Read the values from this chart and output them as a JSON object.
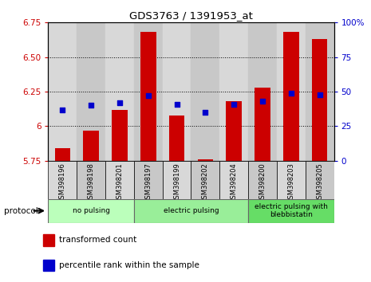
{
  "title": "GDS3763 / 1391953_at",
  "samples": [
    "GSM398196",
    "GSM398198",
    "GSM398201",
    "GSM398197",
    "GSM398199",
    "GSM398202",
    "GSM398204",
    "GSM398200",
    "GSM398203",
    "GSM398205"
  ],
  "red_values": [
    5.84,
    5.97,
    6.12,
    6.68,
    6.08,
    5.76,
    6.18,
    6.28,
    6.68,
    6.63
  ],
  "blue_values": [
    37,
    40,
    42,
    47,
    41,
    35,
    41,
    43,
    49,
    48
  ],
  "ylim_left": [
    5.75,
    6.75
  ],
  "ylim_right": [
    0,
    100
  ],
  "yticks_left": [
    5.75,
    6.0,
    6.25,
    6.5,
    6.75
  ],
  "yticks_right": [
    0,
    25,
    50,
    75,
    100
  ],
  "ytick_labels_right": [
    "0",
    "25",
    "50",
    "75",
    "100%"
  ],
  "bar_color": "#cc0000",
  "blue_color": "#0000cc",
  "groups": [
    {
      "label": "no pulsing",
      "start": 0,
      "end": 3,
      "color": "#bbffbb"
    },
    {
      "label": "electric pulsing",
      "start": 3,
      "end": 7,
      "color": "#99ee99"
    },
    {
      "label": "electric pulsing with\nblebbistatin",
      "start": 7,
      "end": 10,
      "color": "#66dd66"
    }
  ],
  "protocol_label": "protocol",
  "legend_red": "transformed count",
  "legend_blue": "percentile rank within the sample",
  "bar_width": 0.55,
  "base_value": 5.75
}
